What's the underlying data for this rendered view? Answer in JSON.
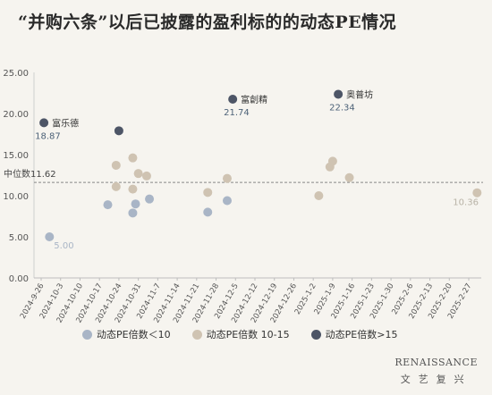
{
  "title": "“并购六条”以后已披露的盈利标的的动态PE情况",
  "chart_data": {
    "type": "scatter",
    "title": "“并购六条”以后已披露的盈利标的的动态PE情况",
    "xlabel": "",
    "ylabel": "",
    "ylim": [
      0,
      25
    ],
    "yticks": [
      "0.00",
      "5.00",
      "10.00",
      "15.00",
      "20.00",
      "25.00"
    ],
    "xticks": [
      "2024-9-26",
      "2024-10-3",
      "2024-10-10",
      "2024-10-17",
      "2024-10-24",
      "2024-10-31",
      "2024-11-7",
      "2024-11-14",
      "2024-11-21",
      "2024-11-28",
      "2024-12-5",
      "2024-12-12",
      "2024-12-19",
      "2024-12-26",
      "2025-1-2",
      "2025-1-9",
      "2025-1-16",
      "2025-1-23",
      "2025-1-30",
      "2025-2-6",
      "2025-2-13",
      "2025-2-20",
      "2025-2-27"
    ],
    "median": {
      "label": "中位数11.62",
      "value": 11.62
    },
    "grid": false,
    "legend_position": "bottom",
    "colors": {
      "low": "#a9b5c6",
      "mid": "#cfc3b2",
      "high": "#4d5566",
      "median_line": "#888888"
    },
    "series": [
      {
        "name": "动态PE倍数＜10",
        "points": [
          {
            "x": "2024-9-29",
            "y": 5.0
          },
          {
            "x": "2024-10-20",
            "y": 8.9
          },
          {
            "x": "2024-10-29",
            "y": 7.9
          },
          {
            "x": "2024-10-30",
            "y": 9.0
          },
          {
            "x": "2024-11-4",
            "y": 9.6
          },
          {
            "x": "2024-11-25",
            "y": 8.0
          },
          {
            "x": "2024-12-2",
            "y": 9.4
          }
        ]
      },
      {
        "name": "动态PE倍数 10-15",
        "points": [
          {
            "x": "2024-10-23",
            "y": 11.1
          },
          {
            "x": "2024-10-23",
            "y": 13.7
          },
          {
            "x": "2024-10-29",
            "y": 14.6
          },
          {
            "x": "2024-10-29",
            "y": 10.8
          },
          {
            "x": "2024-10-31",
            "y": 12.7
          },
          {
            "x": "2024-11-3",
            "y": 12.4
          },
          {
            "x": "2024-11-25",
            "y": 10.4
          },
          {
            "x": "2024-12-2",
            "y": 12.1
          },
          {
            "x": "2025-1-4",
            "y": 10.0
          },
          {
            "x": "2025-1-8",
            "y": 13.5
          },
          {
            "x": "2025-1-9",
            "y": 14.2
          },
          {
            "x": "2025-1-15",
            "y": 12.2
          },
          {
            "x": "2025-3-2",
            "y": 10.36,
            "label": "10.36"
          }
        ]
      },
      {
        "name": "动态PE倍数>15",
        "points": [
          {
            "x": "2024-9-27",
            "y": 18.87,
            "label": "18.87",
            "name": "富乐德"
          },
          {
            "x": "2024-10-24",
            "y": 17.9
          },
          {
            "x": "2024-12-4",
            "y": 21.74,
            "label": "21.74",
            "name": "富創精"
          },
          {
            "x": "2025-1-11",
            "y": 22.34,
            "label": "22.34",
            "name": "奥普坊"
          }
        ]
      }
    ]
  },
  "legend": [
    {
      "label": "动态PE倍数＜10",
      "color": "#a9b5c6"
    },
    {
      "label": "动态PE倍数 10-15",
      "color": "#cfc3b2"
    },
    {
      "label": "动态PE倍数>15",
      "color": "#4d5566"
    }
  ],
  "brand": {
    "en": "RENAISSANCE",
    "cn": "文艺复兴"
  }
}
